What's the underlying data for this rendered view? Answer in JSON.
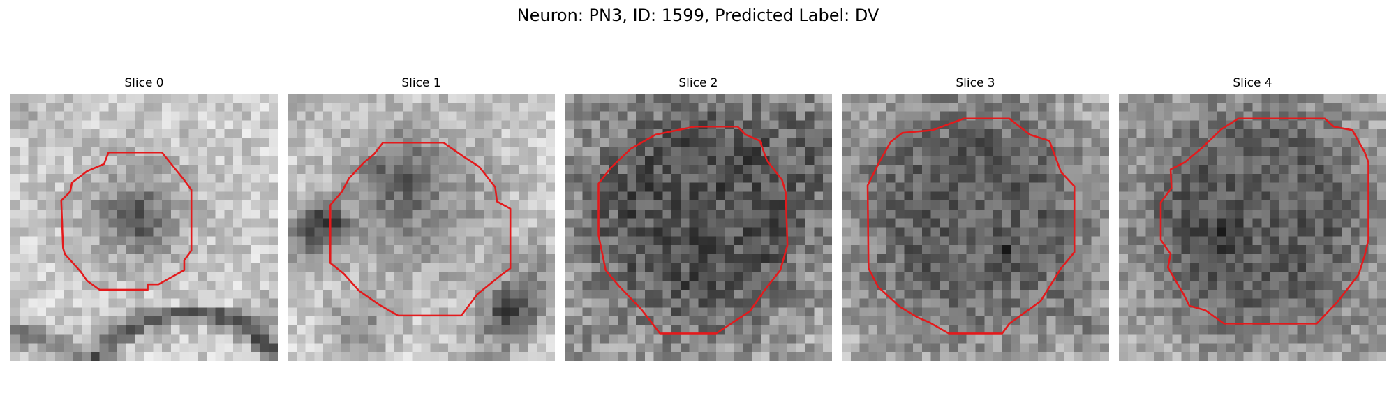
{
  "figure": {
    "title": "Neuron: PN3, ID: 1599, Predicted Label: DV"
  },
  "panels": [
    {
      "title": "Slice 0"
    },
    {
      "title": "Slice 1"
    },
    {
      "title": "Slice 2"
    },
    {
      "title": "Slice 3"
    },
    {
      "title": "Slice 4"
    }
  ],
  "colors": {
    "contour": "#e31a1c",
    "background": "#ffffff"
  }
}
